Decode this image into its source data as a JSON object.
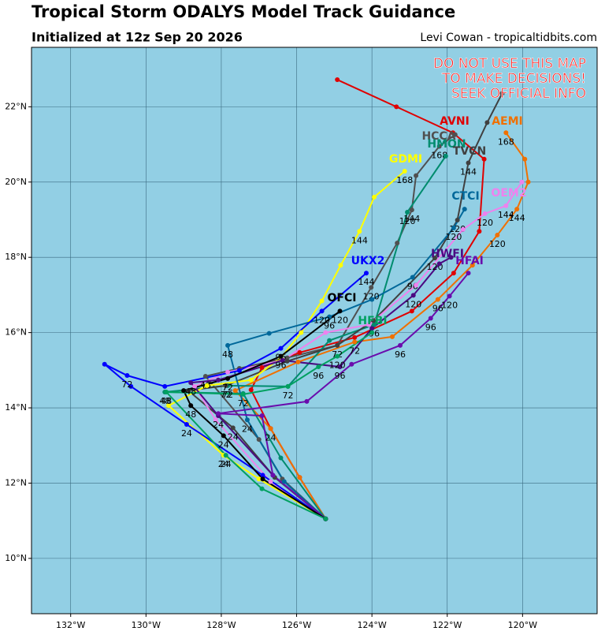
{
  "chart_data": {
    "type": "track",
    "title": "Tropical Storm ODALYS Model Track Guidance",
    "subtitle": "Initialized at 12z Sep 20 2026",
    "credit": "Levi Cowan - tropicaltidbits.com",
    "warning": [
      "DO NOT USE THIS MAP",
      "TO MAKE DECISIONS!",
      "SEEK OFFICIAL INFO"
    ],
    "background": "#92cfe4",
    "grid": true,
    "xlim": [
      -133.04,
      -118.02
    ],
    "ylim": [
      8.53,
      23.58
    ],
    "xticks": [
      {
        "value": -132,
        "label": "132°W"
      },
      {
        "value": -130,
        "label": "130°W"
      },
      {
        "value": -128,
        "label": "128°W"
      },
      {
        "value": -126,
        "label": "126°W"
      },
      {
        "value": -124,
        "label": "124°W"
      },
      {
        "value": -122,
        "label": "122°W"
      },
      {
        "value": -120,
        "label": "120°W"
      }
    ],
    "yticks": [
      {
        "value": 10,
        "label": "10°N"
      },
      {
        "value": 12,
        "label": "12°N"
      },
      {
        "value": 14,
        "label": "14°N"
      },
      {
        "value": 16,
        "label": "16°N"
      },
      {
        "value": 18,
        "label": "18°N"
      },
      {
        "value": 20,
        "label": "20°N"
      },
      {
        "value": 22,
        "label": "22°N"
      }
    ],
    "series": [
      {
        "name": "AVNI",
        "color": "#e00000",
        "x": [
          -125.23,
          -125.92,
          -126.69,
          -127.21,
          -126.92,
          -125.92,
          -124.46,
          -122.94,
          -121.83,
          -121.15,
          -121.02,
          -121.85,
          -123.35,
          -124.92
        ],
        "values": [
          11.05,
          12.15,
          13.45,
          14.48,
          15.07,
          15.47,
          15.87,
          16.57,
          17.58,
          18.69,
          20.61,
          21.31,
          22.0,
          22.72
        ],
        "point_labels": [
          null,
          null,
          24,
          null,
          null,
          null,
          null,
          null,
          null,
          null,
          null,
          null,
          null,
          null
        ]
      },
      {
        "name": "AEMI",
        "color": "#f07000",
        "x": [
          -125.23,
          -125.92,
          -126.69,
          -127.63,
          -125.96,
          -124.46,
          -123.46,
          -122.25,
          -121.33,
          -120.67,
          -120.15,
          -119.85,
          -119.94,
          -120.44
        ],
        "values": [
          11.05,
          12.15,
          13.45,
          14.46,
          15.22,
          15.75,
          15.89,
          16.88,
          17.79,
          18.59,
          19.28,
          20.0,
          20.61,
          21.31
        ],
        "point_labels": [
          null,
          null,
          null,
          null,
          null,
          72,
          null,
          96,
          null,
          120,
          144,
          null,
          null,
          168
        ]
      },
      {
        "name": "HCCA",
        "color": "#505050",
        "x": [
          -125.23,
          -126.38,
          -127.0,
          -128.42,
          -127.52,
          -126.25,
          -124.92,
          -124.02,
          -123.33,
          -122.94,
          -122.83,
          -122.21,
          -121.79
        ],
        "values": [
          11.05,
          12.11,
          13.16,
          14.84,
          15.05,
          15.33,
          15.66,
          17.2,
          18.38,
          19.26,
          20.17,
          20.95,
          21.26
        ],
        "point_labels": [
          null,
          null,
          null,
          48,
          null,
          null,
          null,
          120,
          null,
          144,
          null,
          168,
          null
        ]
      },
      {
        "name": "HMON",
        "color": "#008c6e",
        "x": [
          -125.23,
          -126.42,
          -127.42,
          -129.5,
          -127.83,
          -126.23,
          -125.13,
          -123.94,
          -123.06,
          -122.04
        ],
        "values": [
          11.05,
          12.67,
          14.38,
          14.42,
          14.59,
          14.57,
          15.79,
          16.21,
          19.2,
          20.69
        ],
        "point_labels": [
          null,
          null,
          null,
          48,
          72,
          null,
          null,
          96,
          120,
          null
        ]
      },
      {
        "name": "TVCN",
        "color": "#404040",
        "x": [
          -125.23,
          -126.58,
          -127.69,
          -128.88,
          -127.88,
          -126.25,
          -124.92,
          -123.96,
          -122.33,
          -121.73,
          -121.44,
          -120.94,
          -120.54
        ],
        "values": [
          11.05,
          12.15,
          13.47,
          14.46,
          14.59,
          15.24,
          15.66,
          16.32,
          17.98,
          18.99,
          20.51,
          21.58,
          22.36
        ],
        "point_labels": [
          null,
          null,
          24,
          null,
          72,
          null,
          72,
          null,
          120,
          120,
          144,
          null,
          null
        ]
      },
      {
        "name": "GDMI",
        "color": "#ffff00",
        "x": [
          -125.23,
          -127.0,
          -127.94,
          -129.4,
          -128.38,
          -127.21,
          -126.42,
          -125.88,
          -125.33,
          -124.83,
          -124.33,
          -123.94,
          -123.13
        ],
        "values": [
          11.05,
          12.11,
          12.74,
          14.06,
          14.59,
          14.74,
          15.33,
          16.0,
          16.84,
          17.79,
          18.69,
          19.6,
          20.29
        ],
        "point_labels": [
          null,
          null,
          24,
          null,
          null,
          null,
          null,
          null,
          null,
          null,
          144,
          null,
          168
        ]
      },
      {
        "name": "CTCI",
        "color": "#00689a",
        "x": [
          -125.23,
          -126.33,
          -127.31,
          -127.83,
          -126.73,
          -125.13,
          -124.0,
          -122.92,
          -121.83,
          -121.54
        ],
        "values": [
          11.05,
          12.04,
          13.68,
          15.66,
          15.98,
          16.42,
          16.88,
          17.47,
          18.78,
          19.28
        ],
        "point_labels": [
          null,
          null,
          24,
          48,
          null,
          96,
          null,
          96,
          120,
          null
        ]
      },
      {
        "name": "OEM2",
        "color": "#ee82ee",
        "x": [
          -125.23,
          -126.69,
          -128.15,
          -128.71,
          -127.83,
          -126.38,
          -125.23,
          -124.08,
          -122.83,
          -121.58,
          -121.0,
          -120.44,
          -120.02
        ],
        "values": [
          11.05,
          12.04,
          13.68,
          14.57,
          14.95,
          15.26,
          16.0,
          16.21,
          17.26,
          18.74,
          19.16,
          19.37,
          20.0
        ],
        "point_labels": [
          null,
          null,
          null,
          null,
          null,
          null,
          null,
          null,
          null,
          null,
          120,
          144,
          null
        ]
      },
      {
        "name": "UKX2",
        "color": "#0000ff",
        "x": [
          -125.23,
          -126.9,
          -128.92,
          -130.4,
          -131.1,
          -130.5,
          -129.5,
          -127.52,
          -126.42,
          -125.33,
          -124.15
        ],
        "values": [
          11.05,
          12.21,
          13.56,
          14.57,
          15.16,
          14.86,
          14.57,
          14.99,
          15.58,
          16.57,
          17.58
        ],
        "point_labels": [
          null,
          null,
          24,
          null,
          null,
          72,
          null,
          null,
          96,
          120,
          144
        ]
      },
      {
        "name": "HWFI",
        "color": "#4b0a82",
        "x": [
          -125.23,
          -126.63,
          -128.08,
          -128.81,
          -128.08,
          -126.38,
          -124.85,
          -124.0,
          -122.9,
          -122.21,
          -121.9
        ],
        "values": [
          11.05,
          12.21,
          13.79,
          14.67,
          14.74,
          15.26,
          15.09,
          16.11,
          16.99,
          17.83,
          18.0
        ],
        "point_labels": [
          null,
          null,
          24,
          48,
          null,
          null,
          96,
          null,
          120,
          null,
          null
        ]
      },
      {
        "name": "HFAI",
        "color": "#6a0dad",
        "x": [
          -125.23,
          -126.63,
          -126.92,
          -128.08,
          -125.73,
          -124.54,
          -123.25,
          -122.44,
          -121.94,
          -121.44
        ],
        "values": [
          11.05,
          12.21,
          13.79,
          13.85,
          14.17,
          15.16,
          15.66,
          16.38,
          16.97,
          17.58
        ],
        "point_labels": [
          null,
          null,
          null,
          null,
          null,
          null,
          96,
          96,
          120,
          null
        ]
      },
      {
        "name": "OFCI",
        "color": "#000000",
        "x": [
          -125.23,
          -126.9,
          -127.94,
          -128.81,
          -129.0,
          -127.83,
          -126.42,
          -124.85
        ],
        "values": [
          11.05,
          12.11,
          13.26,
          14.06,
          14.46,
          14.78,
          15.37,
          16.57
        ],
        "point_labels": [
          null,
          null,
          24,
          48,
          null,
          72,
          96,
          120
        ]
      },
      {
        "name": "HFBI",
        "color": "#00a060",
        "x": [
          -125.23,
          -126.92,
          -127.88,
          -129.46,
          -127.42,
          -126.23,
          -125.42,
          -124.92,
          -124.0
        ],
        "values": [
          11.05,
          11.85,
          12.74,
          14.42,
          14.36,
          14.57,
          15.09,
          15.37,
          16.0
        ],
        "point_labels": [
          null,
          null,
          24,
          48,
          72,
          72,
          96,
          120,
          null
        ]
      }
    ]
  }
}
